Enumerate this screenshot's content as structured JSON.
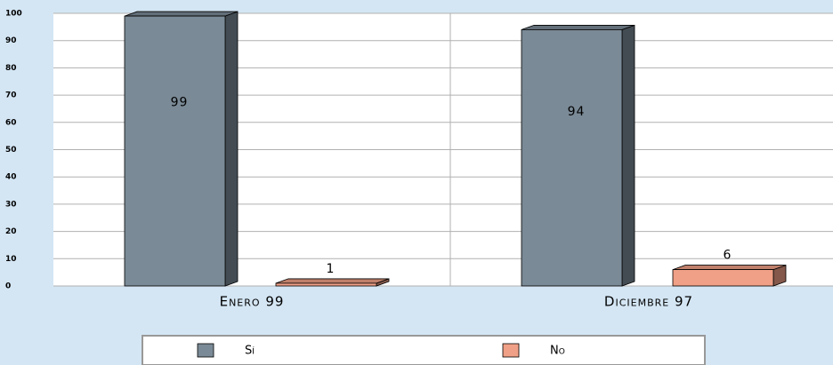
{
  "chart_data": {
    "type": "bar3d",
    "categories": [
      "Enero 99",
      "Diciembre 97"
    ],
    "series": [
      {
        "name": "Sí",
        "color": "#7a8a96",
        "values": [
          99,
          94
        ]
      },
      {
        "name": "No",
        "color": "#f0a086",
        "values": [
          1,
          6
        ]
      }
    ],
    "ylim": [
      0,
      100
    ],
    "yticks": [
      0,
      10,
      20,
      30,
      40,
      50,
      60,
      70,
      80,
      90,
      100
    ],
    "grid": true,
    "legend": "bottom"
  }
}
